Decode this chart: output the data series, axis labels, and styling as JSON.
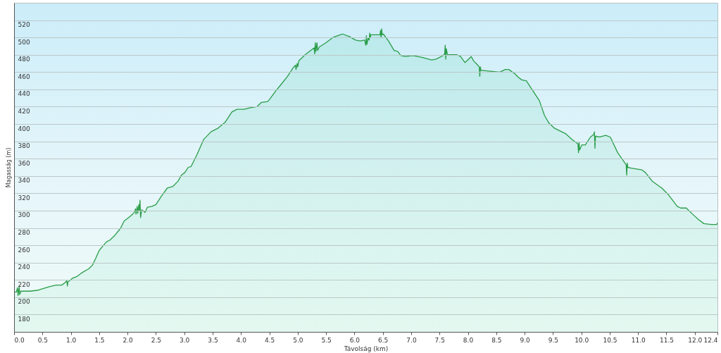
{
  "chart_data": {
    "type": "area",
    "xlabel": "Távolság (km)",
    "ylabel": "Magasság (m)",
    "xlim": [
      0,
      12.4
    ],
    "ylim": [
      160,
      540
    ],
    "xticks": [
      {
        "value": 0,
        "label": "0.0"
      },
      0.5,
      {
        "value": 1,
        "label": "1.0"
      },
      1.5,
      {
        "value": 2,
        "label": "2.0"
      },
      2.5,
      {
        "value": 3,
        "label": "3.0"
      },
      3.5,
      {
        "value": 4,
        "label": "4.0"
      },
      4.5,
      {
        "value": 5,
        "label": "5.0"
      },
      5.5,
      {
        "value": 6,
        "label": "6.0"
      },
      6.5,
      {
        "value": 7,
        "label": "7.0"
      },
      7.5,
      {
        "value": 8,
        "label": "8.0"
      },
      8.5,
      {
        "value": 9,
        "label": "9.0"
      },
      9.5,
      {
        "value": 10,
        "label": "10.0"
      },
      10.5,
      {
        "value": 11,
        "label": "11.0"
      },
      11.5,
      {
        "value": 12,
        "label": "12.0"
      },
      12.4
    ],
    "yticks": [
      180,
      200,
      220,
      240,
      260,
      280,
      300,
      320,
      340,
      360,
      380,
      400,
      420,
      440,
      460,
      480,
      500,
      520
    ],
    "grid": "y",
    "x": [
      0,
      0.04,
      0.06,
      0.07,
      0.09,
      0.1,
      0.12,
      0.28,
      0.41,
      0.51,
      0.61,
      0.74,
      0.84,
      0.9,
      0.93,
      0.94,
      0.95,
      0.98,
      1.03,
      1.11,
      1.19,
      1.32,
      1.38,
      1.44,
      1.5,
      1.55,
      1.63,
      1.69,
      1.77,
      1.88,
      1.94,
      2,
      2.06,
      2.12,
      2.14,
      2.15,
      2.17,
      2.18,
      2.2,
      2.21,
      2.22,
      2.23,
      2.25,
      2.31,
      2.35,
      2.43,
      2.5,
      2.6,
      2.7,
      2.8,
      2.89,
      2.95,
      3.01,
      3.07,
      3.12,
      3.22,
      3.34,
      3.47,
      3.59,
      3.72,
      3.84,
      3.93,
      4.05,
      4.18,
      4.28,
      4.36,
      4.47,
      4.51,
      4.61,
      4.71,
      4.82,
      4.92,
      4.96,
      4.97,
      4.99,
      5,
      5.02,
      5.13,
      5.23,
      5.29,
      5.3,
      5.31,
      5.32,
      5.34,
      5.35,
      5.38,
      5.5,
      5.62,
      5.75,
      5.79,
      5.91,
      6.02,
      6.1,
      6.18,
      6.2,
      6.21,
      6.22,
      6.24,
      6.26,
      6.27,
      6.28,
      6.29,
      6.45,
      6.46,
      6.47,
      6.48,
      6.49,
      6.51,
      6.6,
      6.7,
      6.76,
      6.82,
      6.9,
      7.03,
      7.19,
      7.36,
      7.44,
      7.56,
      7.59,
      7.6,
      7.61,
      7.62,
      7.64,
      7.68,
      7.81,
      7.87,
      7.95,
      8.06,
      8.1,
      8.16,
      8.2,
      8.21,
      8.22,
      8.23,
      8.25,
      8.4,
      8.56,
      8.66,
      8.72,
      8.83,
      8.89,
      8.95,
      9.03,
      9.14,
      9.26,
      9.35,
      9.43,
      9.53,
      9.72,
      9.84,
      9.94,
      9.95,
      9.96,
      9.97,
      10.01,
      10.07,
      10.16,
      10.22,
      10.23,
      10.24,
      10.25,
      10.32,
      10.43,
      10.51,
      10.64,
      10.79,
      10.8,
      10.81,
      10.82,
      10.88,
      11.07,
      11.13,
      11.25,
      11.42,
      11.54,
      11.69,
      11.75,
      11.85,
      11.96,
      12.06,
      12.16,
      12.29,
      12.39,
      12.4
    ],
    "series": [
      {
        "color": "#2a9d48",
        "values": [
          206,
          206,
          211,
          202,
          212,
          203,
          207,
          207,
          208,
          210,
          212,
          214,
          214,
          217,
          219,
          213,
          218,
          219,
          222,
          224,
          228,
          233,
          237,
          245,
          254,
          258,
          264,
          266,
          271,
          280,
          288,
          291,
          294,
          298,
          302,
          296,
          305,
          297,
          307,
          300,
          312,
          292,
          301,
          298,
          304,
          305,
          307,
          317,
          326,
          328,
          334,
          341,
          344,
          350,
          351,
          364,
          382,
          391,
          395,
          402,
          414,
          417,
          417,
          419,
          420,
          425,
          426,
          429,
          438,
          446,
          455,
          465,
          468,
          463,
          470,
          466,
          473,
          480,
          485,
          488,
          481,
          494,
          484,
          494,
          485,
          489,
          494,
          500,
          503,
          504,
          501,
          497,
          496,
          497,
          491,
          502,
          492,
          499,
          497,
          505,
          500,
          503,
          503,
          508,
          500,
          510,
          503,
          504,
          496,
          485,
          484,
          479,
          478,
          479,
          477,
          474,
          475,
          479,
          481,
          491,
          475,
          487,
          480,
          480,
          480,
          478,
          471,
          478,
          473,
          469,
          466,
          455,
          466,
          462,
          462,
          461,
          460,
          463,
          463,
          458,
          454,
          451,
          450,
          439,
          427,
          410,
          401,
          395,
          389,
          382,
          377,
          367,
          379,
          370,
          376,
          376,
          385,
          388,
          391,
          372,
          386,
          385,
          387,
          385,
          367,
          353,
          341,
          355,
          350,
          349,
          347,
          344,
          334,
          326,
          318,
          305,
          303,
          303,
          296,
          290,
          285,
          284,
          284,
          286
        ]
      }
    ]
  }
}
